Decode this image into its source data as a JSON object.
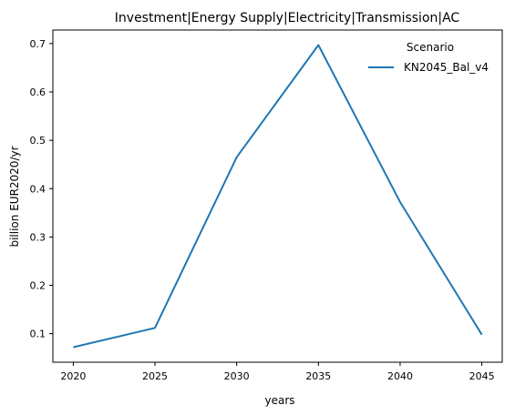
{
  "chart_data": {
    "type": "line",
    "title": "Investment|Energy Supply|Electricity|Transmission|AC",
    "xlabel": "years",
    "ylabel": "billion EUR2020/yr",
    "x": [
      2020,
      2025,
      2030,
      2035,
      2040,
      2045
    ],
    "xticks": [
      "2020",
      "2025",
      "2030",
      "2035",
      "2040",
      "2045"
    ],
    "xlim": [
      2018.75,
      2046.25
    ],
    "yticks": [
      "0.1",
      "0.2",
      "0.3",
      "0.4",
      "0.5",
      "0.6",
      "0.7"
    ],
    "ylim": [
      0.041,
      0.728
    ],
    "grid": false,
    "legend": {
      "title": "Scenario",
      "placement": "top-right"
    },
    "series": [
      {
        "name": "KN2045_Bal_v4",
        "color": "#1f77b4",
        "values": [
          0.072,
          0.112,
          0.465,
          0.697,
          0.372,
          0.098
        ]
      }
    ]
  }
}
